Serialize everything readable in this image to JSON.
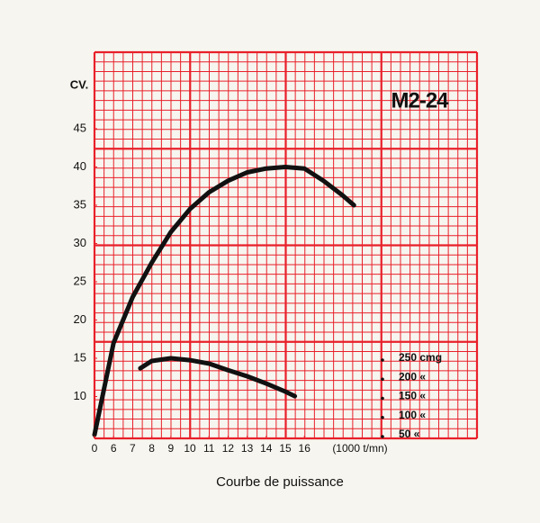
{
  "chart_data": {
    "type": "line",
    "title": "M2-24",
    "caption": "Courbe de puissance",
    "xlabel": "(1000 t/mn)",
    "ylabel": "CV.",
    "xlim": [
      0,
      25
    ],
    "xticks": [
      0,
      6,
      7,
      8,
      9,
      10,
      11,
      12,
      13,
      14,
      15,
      16
    ],
    "ylim": [
      5,
      55
    ],
    "yticks": [
      10,
      15,
      20,
      25,
      30,
      35,
      40,
      45
    ],
    "y2lim": [
      50,
      1050
    ],
    "y2ticks": [
      {
        "value": 250,
        "label": "250 cmg"
      },
      {
        "value": 200,
        "label": "200 «"
      },
      {
        "value": 150,
        "label": "150 «"
      },
      {
        "value": 100,
        "label": "100 «"
      },
      {
        "value": 50,
        "label": "50 «"
      }
    ],
    "grid": true,
    "grid_color": "#e8202a",
    "series": [
      {
        "color": "#111111",
        "x": [
          0,
          6,
          7,
          8,
          9,
          10,
          11,
          12,
          13,
          14,
          15,
          16,
          17,
          18,
          18.6
        ],
        "values": [
          5,
          17,
          23,
          27.5,
          31.5,
          34.5,
          36.7,
          38.2,
          39.3,
          39.8,
          40,
          39.8,
          38.2,
          36.3,
          35
        ]
      },
      {
        "color": "#111111",
        "axis": "y2",
        "x": [
          7.4,
          8,
          9,
          10,
          11,
          12,
          13,
          14,
          15,
          15.5
        ],
        "values": [
          224,
          243,
          250,
          245,
          236,
          219,
          203,
          184,
          163,
          151
        ]
      }
    ]
  }
}
